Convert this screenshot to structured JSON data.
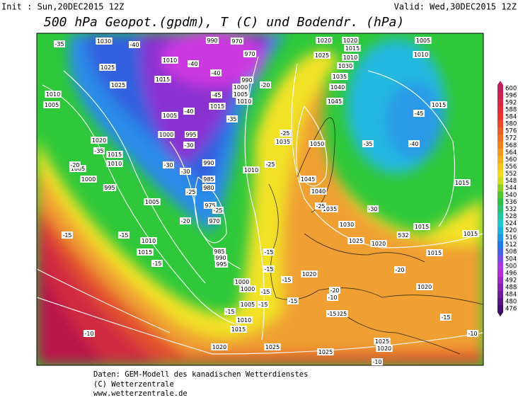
{
  "header": {
    "init": "Init : Sun,20DEC2015 12Z",
    "valid": "Valid: Wed,30DEC2015 12Z",
    "title": "500 hPa Geopot.(gpdm), T (C) und Bodendr. (hPa)"
  },
  "colorbar": {
    "labels": [
      "600",
      "596",
      "592",
      "588",
      "584",
      "580",
      "576",
      "572",
      "568",
      "564",
      "560",
      "556",
      "552",
      "548",
      "544",
      "540",
      "536",
      "532",
      "528",
      "524",
      "520",
      "516",
      "512",
      "508",
      "504",
      "500",
      "496",
      "492",
      "488",
      "484",
      "480",
      "476"
    ]
  },
  "map": {
    "pressure_labels": [
      "1030",
      "1025",
      "1025",
      "1010",
      "1005",
      "1015",
      "1010",
      "990",
      "970",
      "970",
      "990",
      "1000",
      "1005",
      "1010",
      "1015",
      "1005",
      "1000",
      "995",
      "990",
      "985",
      "980",
      "975",
      "970",
      "985",
      "990",
      "995",
      "1000",
      "1000",
      "1005",
      "1010",
      "1015",
      "1020",
      "1025",
      "1025",
      "1025",
      "1020",
      "1015",
      "1010",
      "1020",
      "1005",
      "1000",
      "995",
      "1005",
      "1010",
      "1015",
      "1020",
      "1020",
      "1015",
      "1010",
      "1025",
      "1030",
      "1035",
      "1040",
      "1045",
      "1050",
      "1035",
      "1045",
      "1040",
      "1035",
      "1030",
      "1025",
      "1020",
      "1020",
      "1025",
      "1005",
      "1010",
      "1015",
      "1015",
      "1015",
      "1015",
      "1020",
      "1015",
      "1010",
      "532"
    ],
    "temperature_labels": [
      "-35",
      "-40",
      "-40",
      "-45",
      "-40",
      "-40",
      "-20",
      "-35",
      "-30",
      "-30",
      "-30",
      "-25",
      "-25",
      "-20",
      "-35",
      "-20",
      "-15",
      "-15",
      "-15",
      "-25",
      "-25",
      "-35",
      "-40",
      "-45",
      "-30",
      "-20",
      "-25",
      "-15",
      "-15",
      "-15",
      "-15",
      "-15",
      "-20",
      "-15",
      "-10",
      "-15",
      "-10",
      "-10",
      "-10",
      "-15",
      "-15"
    ]
  },
  "footer": {
    "lines": [
      "Daten: GEM-Modell des kanadischen Wetterdienstes",
      "(C) Wetterzentrale",
      "www.wetterzentrale.de"
    ]
  }
}
